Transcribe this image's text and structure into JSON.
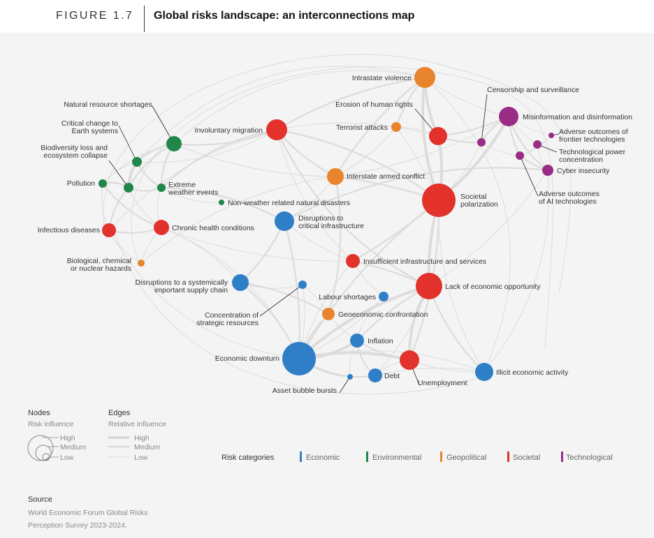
{
  "figure": {
    "number_label": "FIGURE 1.7",
    "title": "Global risks landscape: an interconnections map"
  },
  "colors": {
    "Economic": "#2f7fc8",
    "Environmental": "#21864a",
    "Geopolitical": "#e8842c",
    "Societal": "#e2322b",
    "Technological": "#9b2c86",
    "edge": "#dcdcdc",
    "leader": "#222222"
  },
  "nodes": [
    {
      "id": "intrastate-violence",
      "label": [
        "Intrastate violence"
      ],
      "category": "Geopolitical",
      "size": "medium"
    },
    {
      "id": "censorship",
      "label": [
        "Censorship and surveillance"
      ],
      "category": "Technological",
      "size": "low"
    },
    {
      "id": "erosion-rights",
      "label": [
        "Erosion of human rights"
      ],
      "category": "Societal",
      "size": "medium"
    },
    {
      "id": "misinformation",
      "label": [
        "Misinformation and disinformation"
      ],
      "category": "Technological",
      "size": "medium"
    },
    {
      "id": "natural-resource",
      "label": [
        "Natural resource shortages"
      ],
      "category": "Environmental",
      "size": "medium"
    },
    {
      "id": "involuntary-migration",
      "label": [
        "Involuntary migration"
      ],
      "category": "Societal",
      "size": "medium"
    },
    {
      "id": "terrorist-attacks",
      "label": [
        "Terrorist attacks"
      ],
      "category": "Geopolitical",
      "size": "low"
    },
    {
      "id": "adverse-frontier",
      "label": [
        "Adverse outcomes of",
        "frontier technologies"
      ],
      "category": "Technological",
      "size": "low"
    },
    {
      "id": "critical-change",
      "label": [
        "Critical change to",
        "Earth systems"
      ],
      "category": "Environmental",
      "size": "low"
    },
    {
      "id": "tech-power",
      "label": [
        "Technological power",
        "concentration"
      ],
      "category": "Technological",
      "size": "low"
    },
    {
      "id": "biodiversity",
      "label": [
        "Biodiversity loss and",
        "ecosystem collapse"
      ],
      "category": "Environmental",
      "size": "low"
    },
    {
      "id": "cyber-insecurity",
      "label": [
        "Cyber insecurity"
      ],
      "category": "Technological",
      "size": "low"
    },
    {
      "id": "interstate-conflict",
      "label": [
        "Interstate armed conflict"
      ],
      "category": "Geopolitical",
      "size": "medium"
    },
    {
      "id": "pollution",
      "label": [
        "Pollution"
      ],
      "category": "Environmental",
      "size": "low"
    },
    {
      "id": "extreme-weather",
      "label": [
        "Extreme",
        "weather events"
      ],
      "category": "Environmental",
      "size": "low"
    },
    {
      "id": "adverse-ai",
      "label": [
        "Adverse outcomes",
        "of AI technologies"
      ],
      "category": "Technological",
      "size": "low"
    },
    {
      "id": "societal-polarization",
      "label": [
        "Societal",
        "polarization"
      ],
      "category": "Societal",
      "size": "high"
    },
    {
      "id": "non-weather",
      "label": [
        "Non-weather related natural disasters"
      ],
      "category": "Environmental",
      "size": "low"
    },
    {
      "id": "disruptions-infra",
      "label": [
        "Disruptions to",
        "critical infrastructure"
      ],
      "category": "Economic",
      "size": "medium"
    },
    {
      "id": "infectious",
      "label": [
        "Infectious diseases"
      ],
      "category": "Societal",
      "size": "low"
    },
    {
      "id": "chronic-health",
      "label": [
        "Chronic health conditions"
      ],
      "category": "Societal",
      "size": "medium"
    },
    {
      "id": "insufficient-infra",
      "label": [
        "Insufficient infrastructure and services"
      ],
      "category": "Societal",
      "size": "low"
    },
    {
      "id": "biological",
      "label": [
        "Biological, chemical",
        "or nuclear hazards"
      ],
      "category": "Geopolitical",
      "size": "low"
    },
    {
      "id": "supply-chain",
      "label": [
        "Disruptions to a systemically",
        "important supply chain"
      ],
      "category": "Economic",
      "size": "medium"
    },
    {
      "id": "lack-opportunity",
      "label": [
        "Lack of economic opportunity"
      ],
      "category": "Societal",
      "size": "high"
    },
    {
      "id": "labour-shortages",
      "label": [
        "Labour shortages"
      ],
      "category": "Economic",
      "size": "low"
    },
    {
      "id": "concentration-resources",
      "label": [
        "Concentration of",
        "strategic resources"
      ],
      "category": "Economic",
      "size": "low"
    },
    {
      "id": "geoeconomic",
      "label": [
        "Geoeconomic confrontation"
      ],
      "category": "Geopolitical",
      "size": "low"
    },
    {
      "id": "inflation",
      "label": [
        "Inflation"
      ],
      "category": "Economic",
      "size": "low"
    },
    {
      "id": "economic-downturn",
      "label": [
        "Economic downturn"
      ],
      "category": "Economic",
      "size": "high"
    },
    {
      "id": "unemployment",
      "label": [
        "Unemployment"
      ],
      "category": "Societal",
      "size": "medium"
    },
    {
      "id": "illicit-activity",
      "label": [
        "Illicit economic activity"
      ],
      "category": "Economic",
      "size": "medium"
    },
    {
      "id": "debt",
      "label": [
        "Debt"
      ],
      "category": "Economic",
      "size": "low"
    },
    {
      "id": "asset-bubble",
      "label": [
        "Asset bubble bursts"
      ],
      "category": "Economic",
      "size": "low"
    }
  ],
  "legend": {
    "nodes_title": "Nodes",
    "nodes_subtitle": "Risk influence",
    "edges_title": "Edges",
    "edges_subtitle": "Relative influence",
    "levels": [
      "High",
      "Medium",
      "Low"
    ],
    "categories_title": "Risk categories",
    "categories": [
      "Economic",
      "Environmental",
      "Geopolitical",
      "Societal",
      "Technological"
    ]
  },
  "source": {
    "title": "Source",
    "lines": [
      "World Economic Forum Global Risks",
      "Perception Survey 2023-2024."
    ]
  }
}
